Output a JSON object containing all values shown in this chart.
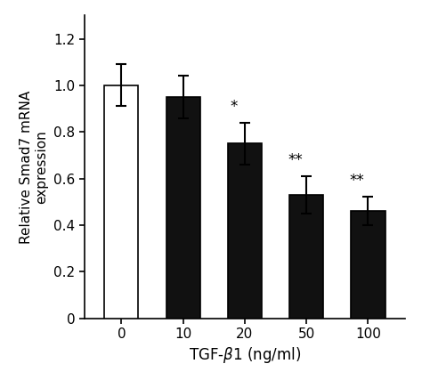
{
  "categories": [
    "0",
    "10",
    "20",
    "50",
    "100"
  ],
  "values": [
    1.0,
    0.95,
    0.75,
    0.53,
    0.46
  ],
  "errors": [
    0.09,
    0.09,
    0.09,
    0.08,
    0.06
  ],
  "bar_colors": [
    "#ffffff",
    "#111111",
    "#111111",
    "#111111",
    "#111111"
  ],
  "bar_edge_colors": [
    "#000000",
    "#000000",
    "#000000",
    "#000000",
    "#000000"
  ],
  "significance": [
    "",
    "",
    "*",
    "**",
    "**"
  ],
  "xlabel": "TGF-β1 (ng/ml)",
  "ylabel": "Relative Smad7 mRNA\nexpression",
  "ylim": [
    0,
    1.3
  ],
  "yticks": [
    0,
    0.2,
    0.4,
    0.6,
    0.8,
    1.0,
    1.2
  ],
  "background_color": "#ffffff",
  "bar_width": 0.55,
  "xlabel_fontsize": 12,
  "ylabel_fontsize": 11,
  "tick_fontsize": 11,
  "sig_fontsize": 12
}
